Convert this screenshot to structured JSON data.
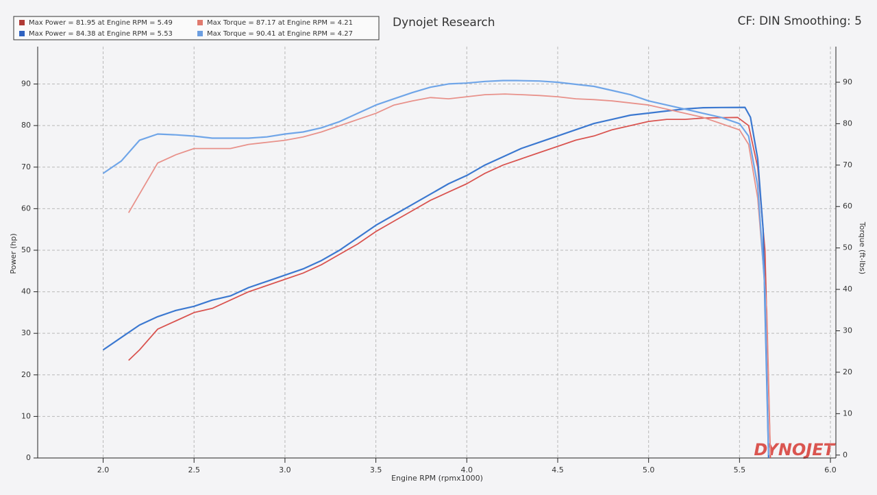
{
  "chart_data": {
    "type": "line",
    "title": "Dynojet Research",
    "subtitle": "CF: DIN Smoothing: 5",
    "watermark": "DYNOJET",
    "x_label": "Engine RPM (rpmx1000)",
    "y_label": "Power (hp)",
    "y2_label": "Torque (ft-lbs)",
    "grid": true,
    "legend": "top-left",
    "xlim": [
      1.64,
      6.03
    ],
    "ylim": [
      0,
      99
    ],
    "y2lim": [
      -0.7,
      98.6
    ],
    "xticks": [
      {
        "value": 2,
        "label": "2.0"
      },
      2.5,
      {
        "value": 3,
        "label": "3.0"
      },
      3.5,
      {
        "value": 4,
        "label": "4.0"
      },
      4.5,
      {
        "value": 5,
        "label": "5.0"
      },
      5.5,
      {
        "value": 6,
        "label": "6.0"
      }
    ],
    "yticks": [
      0,
      10,
      20,
      30,
      40,
      50,
      60,
      70,
      80,
      90
    ],
    "y2ticks": [
      0,
      10,
      20,
      30,
      40,
      50,
      60,
      70,
      80,
      90
    ],
    "series": [
      {
        "name": "Max Power = 81.95 at Engine RPM = 5.49",
        "color": "#d9534f",
        "swatch": "#b03a35",
        "x": [
          2.14,
          2.2,
          2.3,
          2.4,
          2.5,
          2.6,
          2.7,
          2.8,
          2.9,
          3.0,
          3.1,
          3.2,
          3.3,
          3.4,
          3.5,
          3.6,
          3.7,
          3.8,
          3.9,
          4.0,
          4.1,
          4.2,
          4.3,
          4.4,
          4.5,
          4.6,
          4.7,
          4.8,
          4.9,
          5.0,
          5.1,
          5.2,
          5.3,
          5.4,
          5.49,
          5.55,
          5.6,
          5.64,
          5.67
        ],
        "values": [
          23.5,
          26,
          31,
          33,
          35,
          36,
          38,
          40,
          41.5,
          43,
          44.5,
          46.5,
          49,
          51.5,
          54.5,
          57,
          59.5,
          62,
          64,
          66,
          68.5,
          70.5,
          72,
          73.5,
          75,
          76.5,
          77.5,
          79,
          80,
          81,
          81.5,
          81.5,
          81.8,
          81.9,
          81.95,
          80,
          70,
          50,
          0
        ]
      },
      {
        "name": "Max Power = 84.38 at Engine RPM = 5.53",
        "color": "#3b78d0",
        "swatch": "#2f62c0",
        "x": [
          2.0,
          2.1,
          2.2,
          2.3,
          2.4,
          2.5,
          2.6,
          2.7,
          2.8,
          2.9,
          3.0,
          3.1,
          3.2,
          3.3,
          3.4,
          3.5,
          3.6,
          3.7,
          3.8,
          3.9,
          4.0,
          4.1,
          4.2,
          4.3,
          4.4,
          4.5,
          4.6,
          4.7,
          4.8,
          4.9,
          5.0,
          5.1,
          5.2,
          5.3,
          5.4,
          5.53,
          5.56,
          5.6,
          5.63,
          5.66
        ],
        "values": [
          26,
          29,
          32,
          34,
          35.5,
          36.5,
          38,
          39,
          41,
          42.5,
          44,
          45.5,
          47.5,
          50,
          53,
          56,
          58.5,
          61,
          63.5,
          66,
          68,
          70.5,
          72.5,
          74.5,
          76,
          77.5,
          79,
          80.5,
          81.5,
          82.5,
          83,
          83.5,
          84,
          84.3,
          84.35,
          84.38,
          82,
          72,
          55,
          0
        ]
      },
      {
        "name": "Max Torque = 87.17 at Engine RPM = 4.21",
        "color": "#e8918a",
        "swatch": "#e07a6e",
        "axis": "y2",
        "x": [
          2.14,
          2.2,
          2.3,
          2.4,
          2.5,
          2.6,
          2.7,
          2.8,
          2.9,
          3.0,
          3.1,
          3.2,
          3.3,
          3.4,
          3.5,
          3.6,
          3.7,
          3.8,
          3.9,
          4.0,
          4.1,
          4.21,
          4.3,
          4.4,
          4.5,
          4.6,
          4.7,
          4.8,
          4.9,
          5.0,
          5.1,
          5.2,
          5.3,
          5.4,
          5.5,
          5.55,
          5.6,
          5.65,
          5.67
        ],
        "values": [
          58.5,
          63,
          70.5,
          72.5,
          74,
          74,
          74,
          75,
          75.5,
          76,
          76.8,
          78,
          79.5,
          81,
          82.5,
          84.5,
          85.5,
          86.3,
          86,
          86.5,
          87,
          87.17,
          87,
          86.8,
          86.5,
          86,
          85.8,
          85.5,
          85,
          84.5,
          83.5,
          82.5,
          81.5,
          80,
          78.5,
          75,
          62,
          35,
          0
        ]
      },
      {
        "name": "Max Torque = 90.41 at Engine RPM = 4.27",
        "color": "#6fa5e8",
        "swatch": "#6c9ee0",
        "axis": "y2",
        "x": [
          2.0,
          2.1,
          2.2,
          2.3,
          2.4,
          2.5,
          2.6,
          2.7,
          2.8,
          2.9,
          3.0,
          3.1,
          3.2,
          3.3,
          3.4,
          3.5,
          3.6,
          3.7,
          3.8,
          3.9,
          4.0,
          4.1,
          4.2,
          4.27,
          4.4,
          4.5,
          4.6,
          4.7,
          4.8,
          4.9,
          5.0,
          5.1,
          5.2,
          5.3,
          5.4,
          5.5,
          5.55,
          5.6,
          5.64,
          5.66
        ],
        "values": [
          68,
          71,
          76,
          77.5,
          77.3,
          77,
          76.5,
          76.5,
          76.5,
          76.8,
          77.5,
          78,
          79,
          80.5,
          82.5,
          84.5,
          86,
          87.5,
          88.8,
          89.6,
          89.8,
          90.2,
          90.4,
          90.41,
          90.3,
          90,
          89.5,
          89,
          88,
          87,
          85.5,
          84.5,
          83.5,
          82.5,
          81.5,
          80,
          77,
          65,
          40,
          0
        ]
      }
    ]
  }
}
